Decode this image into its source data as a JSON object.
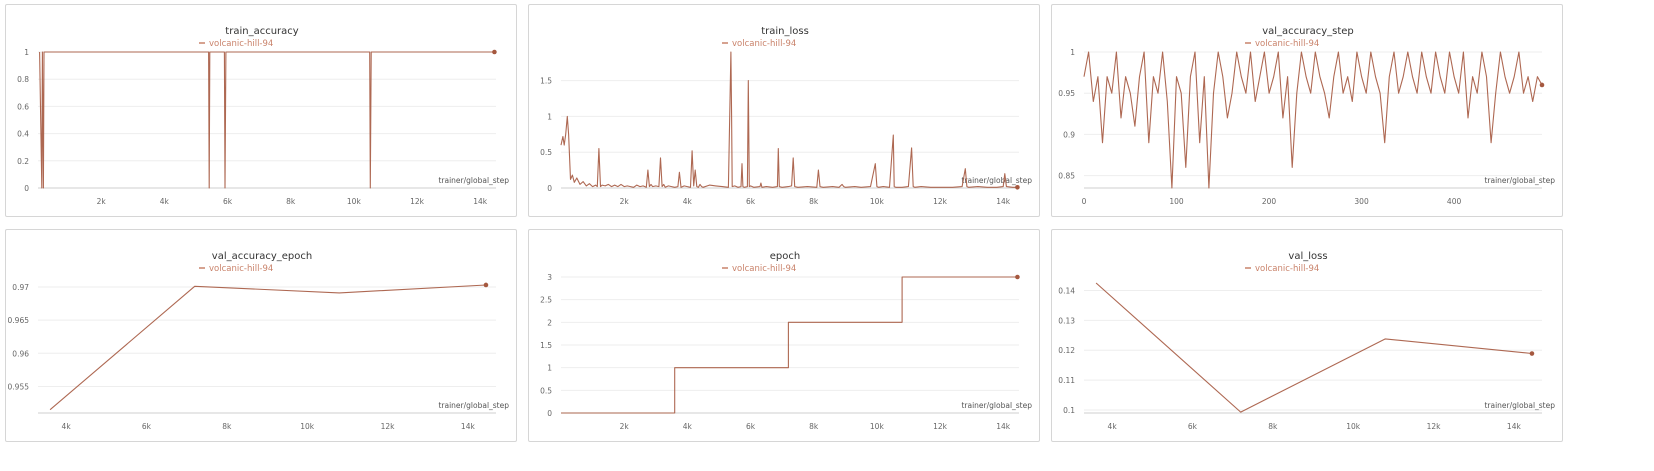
{
  "run_name": "volcanic-hill-94",
  "series_color": "#a5583f",
  "legend_color": "#c9826a",
  "chart_data": [
    {
      "type": "line",
      "title": "train_accuracy",
      "xlabel": "trainer/global_step",
      "xlim": [
        0,
        14500
      ],
      "ylim": [
        0,
        1
      ],
      "xticks": [
        2000,
        4000,
        6000,
        8000,
        10000,
        12000,
        14000
      ],
      "xtick_labels": [
        "2k",
        "4k",
        "6k",
        "8k",
        "10k",
        "12k",
        "14k"
      ],
      "yticks": [
        0,
        0.2,
        0.4,
        0.6,
        0.8,
        1
      ],
      "ytick_labels": [
        "0",
        "0.2",
        "0.4",
        "0.6",
        "0.8",
        "1"
      ],
      "series": [
        {
          "name": "volcanic-hill-94",
          "x": [
            50,
            120,
            140,
            170,
            190,
            5400,
            5420,
            5440,
            5460,
            5900,
            5920,
            5950,
            5970,
            10500,
            10520,
            10550,
            10570,
            14450
          ],
          "y": [
            1,
            0,
            1,
            0,
            1,
            1,
            0,
            1,
            1,
            1,
            0,
            1,
            1,
            1,
            0,
            1,
            1,
            1
          ]
        }
      ]
    },
    {
      "type": "line",
      "title": "train_loss",
      "xlabel": "trainer/global_step",
      "xlim": [
        0,
        14500
      ],
      "ylim": [
        0,
        1.9
      ],
      "xticks": [
        2000,
        4000,
        6000,
        8000,
        10000,
        12000,
        14000
      ],
      "xtick_labels": [
        "2k",
        "4k",
        "6k",
        "8k",
        "10k",
        "12k",
        "14k"
      ],
      "yticks": [
        0,
        0.5,
        1,
        1.5
      ],
      "ytick_labels": [
        "0",
        "0.5",
        "1",
        "1.5"
      ],
      "series": [
        {
          "name": "volcanic-hill-94",
          "x": [
            0,
            60,
            100,
            150,
            200,
            240,
            300,
            360,
            420,
            500,
            600,
            700,
            800,
            900,
            1000,
            1100,
            1150,
            1200,
            1250,
            1300,
            1400,
            1500,
            1600,
            1700,
            1800,
            1900,
            2000,
            2100,
            2200,
            2300,
            2400,
            2500,
            2600,
            2700,
            2750,
            2800,
            2850,
            2900,
            3000,
            3100,
            3150,
            3200,
            3250,
            3300,
            3400,
            3500,
            3600,
            3700,
            3750,
            3800,
            3850,
            3900,
            4000,
            4100,
            4150,
            4200,
            4250,
            4300,
            4350,
            4400,
            4450,
            4500,
            4700,
            4900,
            5100,
            5300,
            5380,
            5400,
            5420,
            5500,
            5600,
            5700,
            5730,
            5760,
            5800,
            5900,
            5930,
            5960,
            6000,
            6100,
            6300,
            6330,
            6360,
            6500,
            6700,
            6850,
            6880,
            6910,
            7000,
            7200,
            7300,
            7350,
            7400,
            7500,
            7800,
            8100,
            8150,
            8200,
            8300,
            8600,
            8800,
            8900,
            8950,
            9000,
            9300,
            9500,
            9800,
            9950,
            10000,
            10050,
            10200,
            10400,
            10520,
            10550,
            10600,
            10800,
            11000,
            11100,
            11150,
            11200,
            11400,
            11700,
            12000,
            12400,
            12700,
            12800,
            12850,
            12900,
            13200,
            13500,
            13800,
            14000,
            14050,
            14100,
            14300,
            14450
          ],
          "y": [
            0.6,
            0.72,
            0.6,
            0.75,
            1.0,
            0.75,
            0.12,
            0.18,
            0.08,
            0.14,
            0.05,
            0.09,
            0.03,
            0.06,
            0.02,
            0.04,
            0.02,
            0.55,
            0.02,
            0.04,
            0.03,
            0.05,
            0.02,
            0.04,
            0.02,
            0.05,
            0.02,
            0.03,
            0.02,
            0.01,
            0.04,
            0.02,
            0.03,
            0.01,
            0.25,
            0.02,
            0.05,
            0.02,
            0.03,
            0.02,
            0.42,
            0.02,
            0.05,
            0.01,
            0.03,
            0.02,
            0.01,
            0.02,
            0.22,
            0.01,
            0.02,
            0.03,
            0.02,
            0.01,
            0.52,
            0.03,
            0.25,
            0.02,
            0.01,
            0.05,
            0.02,
            0.01,
            0.04,
            0.03,
            0.02,
            0.01,
            1.9,
            1.0,
            0.02,
            0.03,
            0.01,
            0.02,
            0.34,
            0.02,
            0.01,
            0.02,
            1.5,
            0.02,
            0.03,
            0.01,
            0.02,
            0.07,
            0.01,
            0.02,
            0.01,
            0.02,
            0.55,
            0.02,
            0.01,
            0.02,
            0.03,
            0.42,
            0.02,
            0.01,
            0.02,
            0.01,
            0.25,
            0.02,
            0.01,
            0.02,
            0.01,
            0.05,
            0.02,
            0.01,
            0.02,
            0.01,
            0.02,
            0.34,
            0.02,
            0.01,
            0.02,
            0.01,
            0.74,
            0.02,
            0.01,
            0.01,
            0.02,
            0.56,
            0.02,
            0.01,
            0.02,
            0.01,
            0.01,
            0.01,
            0.02,
            0.27,
            0.02,
            0.01,
            0.02,
            0.01,
            0.01,
            0.02,
            0.2,
            0.02,
            0.01,
            0.01
          ]
        }
      ]
    },
    {
      "type": "line",
      "title": "val_accuracy_step",
      "xlabel": "trainer/global_step",
      "xlim": [
        0,
        495
      ],
      "ylim": [
        0.835,
        1.0
      ],
      "xticks": [
        0,
        100,
        200,
        300,
        400
      ],
      "xtick_labels": [
        "0",
        "100",
        "200",
        "300",
        "400"
      ],
      "yticks": [
        0.85,
        0.9,
        0.95,
        1
      ],
      "ytick_labels": [
        "0.85",
        "0.9",
        "0.95",
        "1"
      ],
      "series": [
        {
          "name": "volcanic-hill-94",
          "x": [
            0,
            5,
            10,
            15,
            20,
            25,
            30,
            35,
            40,
            45,
            50,
            55,
            60,
            65,
            70,
            75,
            80,
            85,
            90,
            95,
            100,
            105,
            110,
            115,
            120,
            125,
            130,
            135,
            140,
            145,
            150,
            155,
            160,
            165,
            170,
            175,
            180,
            185,
            190,
            195,
            200,
            205,
            210,
            215,
            220,
            225,
            230,
            235,
            240,
            245,
            250,
            255,
            260,
            265,
            270,
            275,
            280,
            285,
            290,
            295,
            300,
            305,
            310,
            315,
            320,
            325,
            330,
            335,
            340,
            345,
            350,
            355,
            360,
            365,
            370,
            375,
            380,
            385,
            390,
            395,
            400,
            405,
            410,
            415,
            420,
            425,
            430,
            435,
            440,
            445,
            450,
            455,
            460,
            465,
            470,
            475,
            480,
            485,
            490,
            495
          ],
          "y": [
            0.97,
            1.0,
            0.94,
            0.97,
            0.89,
            0.97,
            0.95,
            1.0,
            0.92,
            0.97,
            0.95,
            0.91,
            0.97,
            1.0,
            0.89,
            0.97,
            0.95,
            1.0,
            0.94,
            0.835,
            0.97,
            0.95,
            0.86,
            0.97,
            1.0,
            0.89,
            0.97,
            0.835,
            0.95,
            1.0,
            0.97,
            0.92,
            0.95,
            1.0,
            0.97,
            0.95,
            1.0,
            0.94,
            0.97,
            1.0,
            0.95,
            0.97,
            1.0,
            0.92,
            0.97,
            0.86,
            0.95,
            1.0,
            0.97,
            0.95,
            1.0,
            0.97,
            0.95,
            0.92,
            0.97,
            1.0,
            0.95,
            0.97,
            0.94,
            1.0,
            0.97,
            0.95,
            1.0,
            0.97,
            0.95,
            0.89,
            0.97,
            1.0,
            0.95,
            0.97,
            1.0,
            0.97,
            0.95,
            1.0,
            0.97,
            0.95,
            1.0,
            0.97,
            0.95,
            1.0,
            0.97,
            0.95,
            1.0,
            0.92,
            0.97,
            0.95,
            1.0,
            0.97,
            0.89,
            0.95,
            1.0,
            0.97,
            0.95,
            0.97,
            1.0,
            0.95,
            0.97,
            0.94,
            0.97,
            0.96
          ]
        }
      ]
    },
    {
      "type": "line",
      "title": "val_accuracy_epoch",
      "xlabel": "trainer/global_step",
      "xlim": [
        3300,
        14700
      ],
      "ylim": [
        0.951,
        0.9715
      ],
      "xticks": [
        4000,
        6000,
        8000,
        10000,
        12000,
        14000
      ],
      "xtick_labels": [
        "4k",
        "6k",
        "8k",
        "10k",
        "12k",
        "14k"
      ],
      "yticks": [
        0.955,
        0.96,
        0.965,
        0.97
      ],
      "ytick_labels": [
        "0.955",
        "0.96",
        "0.965",
        "0.97"
      ],
      "series": [
        {
          "name": "volcanic-hill-94",
          "x": [
            3600,
            7200,
            10800,
            14450
          ],
          "y": [
            0.9515,
            0.9701,
            0.9691,
            0.9703
          ]
        }
      ]
    },
    {
      "type": "line",
      "title": "epoch",
      "xlabel": "trainer/global_step",
      "xlim": [
        0,
        14500
      ],
      "ylim": [
        0,
        3
      ],
      "xticks": [
        2000,
        4000,
        6000,
        8000,
        10000,
        12000,
        14000
      ],
      "xtick_labels": [
        "2k",
        "4k",
        "6k",
        "8k",
        "10k",
        "12k",
        "14k"
      ],
      "yticks": [
        0,
        0.5,
        1,
        1.5,
        2,
        2.5,
        3
      ],
      "ytick_labels": [
        "0",
        "0.5",
        "1",
        "1.5",
        "2",
        "2.5",
        "3"
      ],
      "series": [
        {
          "name": "volcanic-hill-94",
          "x": [
            0,
            3600,
            3600,
            7200,
            7200,
            10800,
            10800,
            14450
          ],
          "y": [
            0,
            0,
            1,
            1,
            2,
            2,
            3,
            3
          ]
        }
      ]
    },
    {
      "type": "line",
      "title": "val_loss",
      "xlabel": "trainer/global_step",
      "xlim": [
        3300,
        14700
      ],
      "ylim": [
        0.099,
        0.1445
      ],
      "xticks": [
        4000,
        6000,
        8000,
        10000,
        12000,
        14000
      ],
      "xtick_labels": [
        "4k",
        "6k",
        "8k",
        "10k",
        "12k",
        "14k"
      ],
      "yticks": [
        0.1,
        0.11,
        0.12,
        0.13,
        0.14
      ],
      "ytick_labels": [
        "0.1",
        "0.11",
        "0.12",
        "0.13",
        "0.14"
      ],
      "series": [
        {
          "name": "volcanic-hill-94",
          "x": [
            3600,
            7200,
            10800,
            14450
          ],
          "y": [
            0.1425,
            0.0993,
            0.1238,
            0.1189
          ]
        }
      ]
    }
  ]
}
